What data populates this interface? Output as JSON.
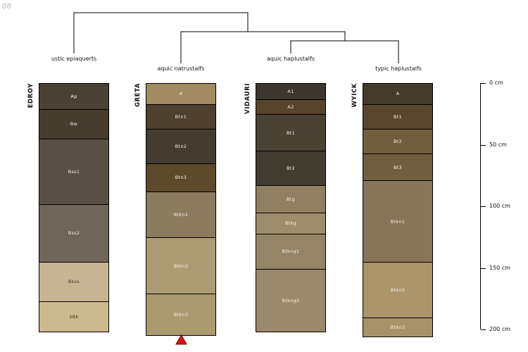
{
  "figure_label": "08",
  "chart_data": {
    "type": "bar",
    "subtype": "soil-profile-horizon-depth-columns-with-dendrogram",
    "title": "",
    "depth_axis": {
      "unit": "cm",
      "min": 0,
      "max": 200,
      "tick_values": [
        0,
        50,
        100,
        150,
        200
      ],
      "tick_labels": [
        "0 cm",
        "50 cm",
        "100 cm",
        "150 cm",
        "200 cm"
      ]
    },
    "dendrogram": {
      "topology": "(EDROY,(GRETA,(VIDAURI,WYICK)))"
    },
    "groups": [
      {
        "label": "ustic epiaquerts"
      },
      {
        "label": "aquic natrustalfs"
      },
      {
        "label": "aquic haplustalfs"
      },
      {
        "label": "typic haplustalfs"
      }
    ],
    "profiles": [
      {
        "name": "EDROY",
        "classification": "ustic epiaquerts",
        "horizons": [
          {
            "label": "Ap",
            "top_cm": 0,
            "bottom_cm": 21,
            "color": "#4a4136",
            "text_color": "#f5f2ec"
          },
          {
            "label": "Bw",
            "top_cm": 21,
            "bottom_cm": 45,
            "color": "#473c30",
            "text_color": "#f5f2ec"
          },
          {
            "label": "Bss1",
            "top_cm": 45,
            "bottom_cm": 98,
            "color": "#585047",
            "text_color": "#f5f2ec"
          },
          {
            "label": "Bss2",
            "top_cm": 98,
            "bottom_cm": 145,
            "color": "#6e655b",
            "text_color": "#f5f2ec"
          },
          {
            "label": "Bkss",
            "top_cm": 145,
            "bottom_cm": 177,
            "color": "#c5b593",
            "text_color": "#3a342a"
          },
          {
            "label": "2Bk",
            "top_cm": 177,
            "bottom_cm": 201,
            "color": "#ccb98d",
            "text_color": "#3a342a"
          }
        ]
      },
      {
        "name": "GRETA",
        "classification": "aquic natrustalfs",
        "horizons": [
          {
            "label": "A",
            "top_cm": 0,
            "bottom_cm": 17,
            "color": "#a28a61",
            "text_color": "#f5f2ec"
          },
          {
            "label": "Btn1",
            "top_cm": 17,
            "bottom_cm": 37,
            "color": "#4d402d",
            "text_color": "#f5f2ec"
          },
          {
            "label": "Btn2",
            "top_cm": 37,
            "bottom_cm": 65,
            "color": "#453c31",
            "text_color": "#f5f2ec"
          },
          {
            "label": "Btn3",
            "top_cm": 65,
            "bottom_cm": 88,
            "color": "#5e492a",
            "text_color": "#f5f2ec"
          },
          {
            "label": "Btkn1",
            "top_cm": 88,
            "bottom_cm": 125,
            "color": "#8c7c5f",
            "text_color": "#f5f2ec"
          },
          {
            "label": "Btkn2",
            "top_cm": 125,
            "bottom_cm": 171,
            "color": "#ad9c73",
            "text_color": "#f5f2ec"
          },
          {
            "label": "Btkn3",
            "top_cm": 171,
            "bottom_cm": 204,
            "color": "#ab9970",
            "text_color": "#f5f2ec"
          }
        ]
      },
      {
        "name": "VIDAURI",
        "classification": "aquic haplustalfs",
        "horizons": [
          {
            "label": "A1",
            "top_cm": 0,
            "bottom_cm": 13,
            "color": "#3d362c",
            "text_color": "#f5f2ec"
          },
          {
            "label": "A2",
            "top_cm": 13,
            "bottom_cm": 25,
            "color": "#58442c",
            "text_color": "#f5f2ec"
          },
          {
            "label": "Bt1",
            "top_cm": 25,
            "bottom_cm": 55,
            "color": "#4b4134",
            "text_color": "#f5f2ec"
          },
          {
            "label": "Bt2",
            "top_cm": 55,
            "bottom_cm": 83,
            "color": "#423b30",
            "text_color": "#f5f2ec"
          },
          {
            "label": "Btg",
            "top_cm": 83,
            "bottom_cm": 105,
            "color": "#907f62",
            "text_color": "#f5f2ec"
          },
          {
            "label": "Btkg",
            "top_cm": 105,
            "bottom_cm": 122,
            "color": "#9d8d6a",
            "text_color": "#f5f2ec"
          },
          {
            "label": "Btkng1",
            "top_cm": 122,
            "bottom_cm": 151,
            "color": "#948567",
            "text_color": "#f5f2ec"
          },
          {
            "label": "Btkng2",
            "top_cm": 151,
            "bottom_cm": 201,
            "color": "#9a8a6b",
            "text_color": "#f5f2ec"
          }
        ]
      },
      {
        "name": "WYICK",
        "classification": "typic haplustalfs",
        "horizons": [
          {
            "label": "A",
            "top_cm": 0,
            "bottom_cm": 17,
            "color": "#433a2d",
            "text_color": "#f5f2ec"
          },
          {
            "label": "Bt1",
            "top_cm": 17,
            "bottom_cm": 37,
            "color": "#59472d",
            "text_color": "#f5f2ec"
          },
          {
            "label": "Bt2",
            "top_cm": 37,
            "bottom_cm": 57,
            "color": "#725e3f",
            "text_color": "#f5f2ec"
          },
          {
            "label": "Bt3",
            "top_cm": 57,
            "bottom_cm": 79,
            "color": "#705e41",
            "text_color": "#f5f2ec"
          },
          {
            "label": "Btkn1",
            "top_cm": 79,
            "bottom_cm": 145,
            "color": "#877559",
            "text_color": "#f5f2ec"
          },
          {
            "label": "Btkn2",
            "top_cm": 145,
            "bottom_cm": 190,
            "color": "#ab9569",
            "text_color": "#f5f2ec"
          },
          {
            "label": "Btkn3",
            "top_cm": 190,
            "bottom_cm": 205,
            "color": "#a89267",
            "text_color": "#f5f2ec"
          }
        ]
      }
    ],
    "marker": {
      "symbol": "triangle-up",
      "color": "#e01212",
      "outline": "#7a0000",
      "below_profile": "GRETA"
    }
  }
}
